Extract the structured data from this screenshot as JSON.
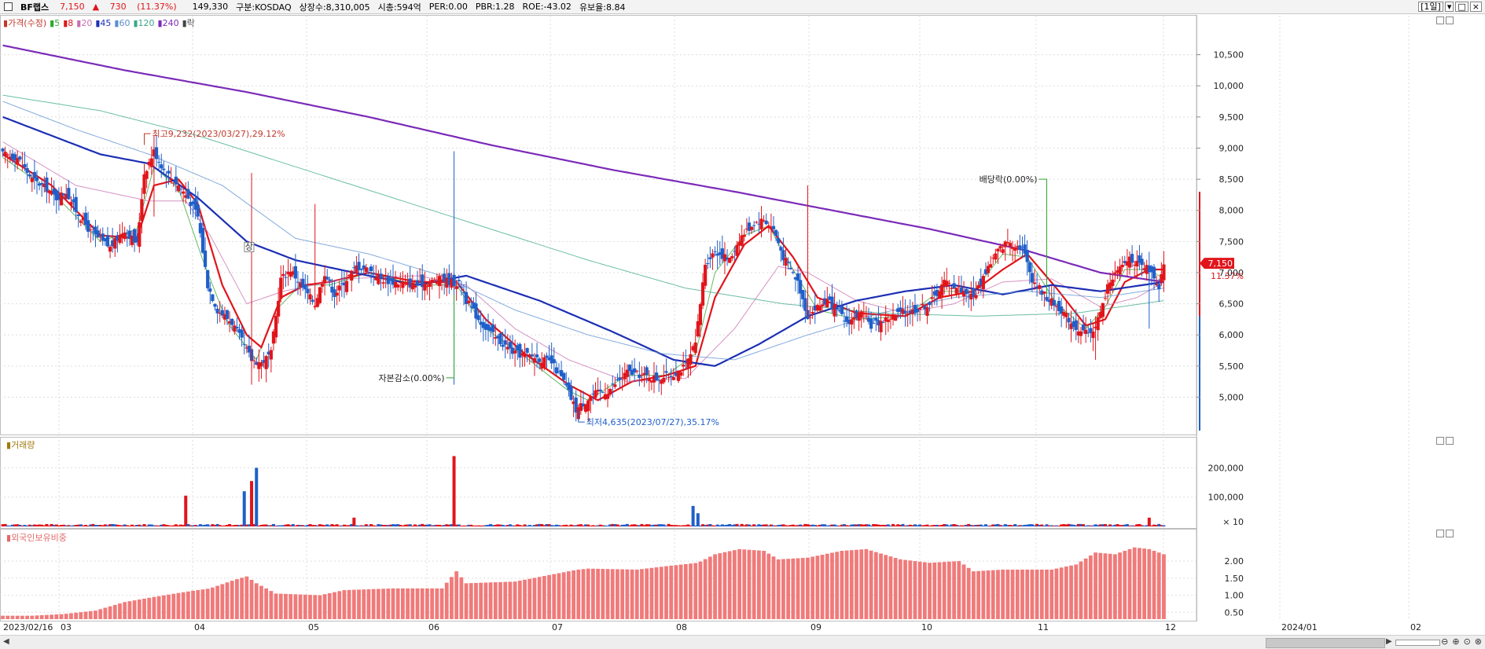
{
  "header": {
    "name": "BF랩스",
    "price": "7,150",
    "change_arrow": "▲",
    "change": "730",
    "change_pct": "(11.37%)",
    "volume": "149,330",
    "market": "구분:KOSDAQ",
    "shares": "상장수:8,310,005",
    "mktcap": "시총:594억",
    "per": "PER:0.00",
    "pbr": "PBR:1.28",
    "roe": "ROE:-43.02",
    "float_ratio": "유보율:8.84",
    "period": "[1일]",
    "ctl_min": "▾",
    "ctl_max": "□",
    "ctl_close": "×"
  },
  "legend": {
    "price_label": "가격(수정)",
    "ma": [
      {
        "label": "5",
        "color": "#2fa52f"
      },
      {
        "label": "8",
        "color": "#e0151b"
      },
      {
        "label": "20",
        "color": "#c86fb0"
      },
      {
        "label": "45",
        "color": "#1c2fb4"
      },
      {
        "label": "60",
        "color": "#5a8fd0"
      },
      {
        "label": "120",
        "color": "#3aa88a"
      },
      {
        "label": "240",
        "color": "#7a2ab8"
      }
    ],
    "drop_label": "락"
  },
  "panes": {
    "volume_title": "거래량",
    "foreign_title": "외국인보유비중"
  },
  "colors": {
    "up": "#e0151b",
    "down": "#1f5fc9",
    "ma5": "#2fa52f",
    "ma8": "#e0151b",
    "ma20": "#c86fb0",
    "ma45": "#1c2fb4",
    "ma60": "#5a8fd0",
    "ma120": "#3aa88a",
    "ma240": "#7a2ab8",
    "foreign_bar": "#f07a7a",
    "grid": "#dddddd"
  },
  "annotations": {
    "high": "최고9,232(2023/03/27),29.12%",
    "low": "최저4,635(2023/07/27),35.17%",
    "capital_reduction": "자본감소(0.00%)",
    "dividend": "배당락(0.00%)",
    "mark_sang": "상",
    "current_price": "7,150",
    "current_pct": "11.37%"
  },
  "axes": {
    "price_ticks": [
      "10,500",
      "10,000",
      "9,500",
      "9,000",
      "8,500",
      "8,000",
      "7,500",
      "7,000",
      "6,500",
      "6,000",
      "5,500",
      "5,000"
    ],
    "volume_ticks": [
      "200,000",
      "100,000",
      "× 10"
    ],
    "foreign_ticks": [
      "2.00",
      "1.50",
      "1.00",
      "0.50"
    ],
    "x_labels": [
      "2023/02/16",
      "03",
      "04",
      "05",
      "06",
      "07",
      "08",
      "09",
      "10",
      "11",
      "12",
      "2024/01",
      "02"
    ]
  },
  "chart_data": {
    "type": "candlestick",
    "x_range": [
      "2023-02-16",
      "2024-02-01"
    ],
    "price_ylim": [
      4400,
      11000
    ],
    "volume_ylim": [
      0,
      260000
    ],
    "foreign_ylim": [
      0.3,
      2.6
    ],
    "anchors": [
      [
        0,
        8900
      ],
      [
        6,
        8850
      ],
      [
        12,
        8500
      ],
      [
        18,
        8350
      ],
      [
        22,
        8200
      ],
      [
        26,
        8300
      ],
      [
        30,
        8000
      ],
      [
        36,
        7650
      ],
      [
        44,
        7400
      ],
      [
        50,
        7700
      ],
      [
        55,
        7450
      ],
      [
        58,
        8600
      ],
      [
        62,
        8950
      ],
      [
        66,
        8650
      ],
      [
        72,
        8400
      ],
      [
        76,
        8200
      ],
      [
        80,
        7900
      ],
      [
        84,
        6800
      ],
      [
        88,
        6400
      ],
      [
        94,
        6200
      ],
      [
        98,
        5900
      ],
      [
        102,
        5600
      ],
      [
        106,
        5550
      ],
      [
        110,
        5700
      ],
      [
        114,
        6900
      ],
      [
        118,
        7050
      ],
      [
        124,
        6700
      ],
      [
        128,
        6500
      ],
      [
        132,
        7000
      ],
      [
        136,
        6650
      ],
      [
        140,
        6850
      ],
      [
        145,
        7100
      ],
      [
        150,
        7050
      ],
      [
        155,
        6900
      ],
      [
        160,
        6850
      ],
      [
        170,
        6800
      ],
      [
        180,
        6900
      ],
      [
        188,
        6800
      ],
      [
        190,
        6550
      ],
      [
        196,
        6200
      ],
      [
        202,
        5950
      ],
      [
        210,
        5700
      ],
      [
        218,
        5650
      ],
      [
        225,
        5550
      ],
      [
        230,
        5250
      ],
      [
        235,
        4800
      ],
      [
        238,
        4900
      ],
      [
        242,
        5050
      ],
      [
        248,
        5100
      ],
      [
        252,
        5250
      ],
      [
        256,
        5400
      ],
      [
        262,
        5350
      ],
      [
        268,
        5300
      ],
      [
        274,
        5350
      ],
      [
        280,
        5500
      ],
      [
        284,
        5850
      ],
      [
        288,
        7150
      ],
      [
        292,
        7350
      ],
      [
        298,
        7200
      ],
      [
        302,
        7550
      ],
      [
        308,
        7800
      ],
      [
        312,
        7850
      ],
      [
        316,
        7700
      ],
      [
        320,
        7250
      ],
      [
        326,
        6850
      ],
      [
        330,
        6300
      ],
      [
        334,
        6450
      ],
      [
        338,
        6550
      ],
      [
        346,
        6200
      ],
      [
        352,
        6350
      ],
      [
        356,
        6150
      ],
      [
        362,
        6250
      ],
      [
        368,
        6350
      ],
      [
        374,
        6400
      ],
      [
        380,
        6500
      ],
      [
        386,
        6850
      ],
      [
        392,
        6750
      ],
      [
        398,
        6600
      ],
      [
        404,
        7100
      ],
      [
        408,
        7350
      ],
      [
        412,
        7500
      ],
      [
        418,
        7400
      ],
      [
        422,
        6900
      ],
      [
        428,
        6600
      ],
      [
        434,
        6400
      ],
      [
        438,
        6200
      ],
      [
        442,
        6050
      ],
      [
        446,
        6000
      ],
      [
        450,
        6350
      ],
      [
        454,
        6900
      ],
      [
        458,
        7050
      ],
      [
        462,
        7250
      ],
      [
        466,
        7100
      ],
      [
        470,
        7050
      ],
      [
        474,
        6700
      ],
      [
        476,
        7150
      ]
    ],
    "series": [
      {
        "name": "5",
        "anchors": [
          [
            0,
            8850
          ],
          [
            20,
            8300
          ],
          [
            40,
            7500
          ],
          [
            55,
            7700
          ],
          [
            62,
            8700
          ],
          [
            72,
            8350
          ],
          [
            82,
            7200
          ],
          [
            92,
            6200
          ],
          [
            104,
            5600
          ],
          [
            112,
            6400
          ],
          [
            122,
            6800
          ],
          [
            134,
            6800
          ],
          [
            150,
            7000
          ],
          [
            170,
            6800
          ],
          [
            186,
            6800
          ],
          [
            198,
            6100
          ],
          [
            214,
            5650
          ],
          [
            232,
            5100
          ],
          [
            240,
            4950
          ],
          [
            256,
            5350
          ],
          [
            272,
            5350
          ],
          [
            284,
            5700
          ],
          [
            292,
            7000
          ],
          [
            304,
            7600
          ],
          [
            314,
            7750
          ],
          [
            324,
            7050
          ],
          [
            334,
            6400
          ],
          [
            350,
            6250
          ],
          [
            370,
            6300
          ],
          [
            384,
            6700
          ],
          [
            398,
            6700
          ],
          [
            410,
            7300
          ],
          [
            420,
            7250
          ],
          [
            432,
            6500
          ],
          [
            444,
            6100
          ],
          [
            452,
            6450
          ],
          [
            460,
            7050
          ],
          [
            470,
            7050
          ],
          [
            476,
            6900
          ]
        ]
      },
      {
        "name": "8",
        "anchors": [
          [
            0,
            8900
          ],
          [
            20,
            8400
          ],
          [
            40,
            7600
          ],
          [
            55,
            7550
          ],
          [
            62,
            8400
          ],
          [
            72,
            8500
          ],
          [
            80,
            8100
          ],
          [
            90,
            6800
          ],
          [
            100,
            6000
          ],
          [
            106,
            5800
          ],
          [
            114,
            6600
          ],
          [
            124,
            6800
          ],
          [
            134,
            6850
          ],
          [
            150,
            7000
          ],
          [
            170,
            6850
          ],
          [
            186,
            6850
          ],
          [
            198,
            6250
          ],
          [
            214,
            5700
          ],
          [
            232,
            5200
          ],
          [
            244,
            4950
          ],
          [
            258,
            5250
          ],
          [
            272,
            5350
          ],
          [
            284,
            5500
          ],
          [
            292,
            6600
          ],
          [
            304,
            7450
          ],
          [
            314,
            7750
          ],
          [
            324,
            7250
          ],
          [
            334,
            6600
          ],
          [
            350,
            6350
          ],
          [
            370,
            6300
          ],
          [
            384,
            6600
          ],
          [
            398,
            6700
          ],
          [
            410,
            7050
          ],
          [
            420,
            7300
          ],
          [
            432,
            6750
          ],
          [
            444,
            6150
          ],
          [
            452,
            6250
          ],
          [
            460,
            6850
          ],
          [
            470,
            7050
          ],
          [
            476,
            7050
          ]
        ]
      },
      {
        "name": "20",
        "anchors": [
          [
            0,
            9100
          ],
          [
            30,
            8400
          ],
          [
            60,
            8150
          ],
          [
            75,
            8150
          ],
          [
            85,
            7600
          ],
          [
            100,
            6500
          ],
          [
            115,
            6700
          ],
          [
            140,
            6900
          ],
          [
            170,
            6950
          ],
          [
            190,
            6800
          ],
          [
            210,
            6100
          ],
          [
            232,
            5600
          ],
          [
            256,
            5250
          ],
          [
            280,
            5300
          ],
          [
            300,
            6100
          ],
          [
            318,
            7100
          ],
          [
            330,
            7000
          ],
          [
            350,
            6550
          ],
          [
            370,
            6350
          ],
          [
            390,
            6500
          ],
          [
            410,
            6850
          ],
          [
            430,
            6900
          ],
          [
            450,
            6450
          ],
          [
            465,
            6600
          ],
          [
            476,
            6850
          ]
        ]
      },
      {
        "name": "45",
        "anchors": [
          [
            0,
            9500
          ],
          [
            20,
            9200
          ],
          [
            40,
            8900
          ],
          [
            60,
            8750
          ],
          [
            80,
            8200
          ],
          [
            100,
            7500
          ],
          [
            120,
            7200
          ],
          [
            150,
            6950
          ],
          [
            170,
            6800
          ],
          [
            190,
            6950
          ],
          [
            220,
            6550
          ],
          [
            250,
            6050
          ],
          [
            275,
            5600
          ],
          [
            292,
            5500
          ],
          [
            310,
            5850
          ],
          [
            330,
            6300
          ],
          [
            350,
            6550
          ],
          [
            370,
            6700
          ],
          [
            390,
            6800
          ],
          [
            410,
            6650
          ],
          [
            430,
            6800
          ],
          [
            450,
            6700
          ],
          [
            476,
            6850
          ]
        ]
      },
      {
        "name": "60",
        "anchors": [
          [
            0,
            9750
          ],
          [
            30,
            9300
          ],
          [
            60,
            8900
          ],
          [
            90,
            8400
          ],
          [
            120,
            7550
          ],
          [
            150,
            7300
          ],
          [
            180,
            6950
          ],
          [
            210,
            6400
          ],
          [
            240,
            6000
          ],
          [
            270,
            5700
          ],
          [
            300,
            5600
          ],
          [
            330,
            6000
          ],
          [
            360,
            6350
          ],
          [
            390,
            6600
          ],
          [
            420,
            6700
          ],
          [
            450,
            6600
          ],
          [
            476,
            6750
          ]
        ]
      },
      {
        "name": "120",
        "anchors": [
          [
            0,
            9850
          ],
          [
            40,
            9600
          ],
          [
            80,
            9200
          ],
          [
            120,
            8700
          ],
          [
            160,
            8200
          ],
          [
            200,
            7700
          ],
          [
            240,
            7200
          ],
          [
            280,
            6750
          ],
          [
            320,
            6500
          ],
          [
            360,
            6350
          ],
          [
            400,
            6300
          ],
          [
            440,
            6350
          ],
          [
            476,
            6550
          ]
        ]
      },
      {
        "name": "240",
        "anchors": [
          [
            0,
            10650
          ],
          [
            50,
            10250
          ],
          [
            100,
            9900
          ],
          [
            150,
            9500
          ],
          [
            200,
            9050
          ],
          [
            250,
            8650
          ],
          [
            300,
            8300
          ],
          [
            340,
            8000
          ],
          [
            380,
            7700
          ],
          [
            420,
            7350
          ],
          [
            450,
            7000
          ],
          [
            476,
            6850
          ]
        ]
      }
    ],
    "volume_spikes": [
      [
        75,
        105000
      ],
      [
        99,
        120000
      ],
      [
        102,
        155000
      ],
      [
        104,
        200000
      ],
      [
        185,
        240000
      ],
      [
        283,
        70000
      ],
      [
        285,
        45000
      ],
      [
        470,
        30000
      ],
      [
        144,
        30000
      ]
    ],
    "foreign_anchors": [
      [
        0,
        0.4
      ],
      [
        12,
        0.4
      ],
      [
        25,
        0.45
      ],
      [
        38,
        0.55
      ],
      [
        50,
        0.8
      ],
      [
        62,
        0.95
      ],
      [
        75,
        1.1
      ],
      [
        85,
        1.2
      ],
      [
        95,
        1.45
      ],
      [
        100,
        1.55
      ],
      [
        104,
        1.35
      ],
      [
        112,
        1.05
      ],
      [
        130,
        1.0
      ],
      [
        140,
        1.15
      ],
      [
        160,
        1.2
      ],
      [
        180,
        1.2
      ],
      [
        186,
        1.7
      ],
      [
        190,
        1.35
      ],
      [
        210,
        1.4
      ],
      [
        232,
        1.7
      ],
      [
        236,
        1.75
      ],
      [
        240,
        1.78
      ],
      [
        260,
        1.75
      ],
      [
        272,
        1.85
      ],
      [
        285,
        1.95
      ],
      [
        292,
        2.2
      ],
      [
        302,
        2.35
      ],
      [
        312,
        2.3
      ],
      [
        318,
        2.05
      ],
      [
        330,
        2.1
      ],
      [
        344,
        2.3
      ],
      [
        354,
        2.35
      ],
      [
        368,
        2.05
      ],
      [
        380,
        1.95
      ],
      [
        392,
        2.0
      ],
      [
        398,
        1.7
      ],
      [
        410,
        1.75
      ],
      [
        430,
        1.75
      ],
      [
        440,
        1.9
      ],
      [
        448,
        2.25
      ],
      [
        456,
        2.2
      ],
      [
        464,
        2.4
      ],
      [
        470,
        2.35
      ],
      [
        476,
        2.2
      ]
    ]
  }
}
